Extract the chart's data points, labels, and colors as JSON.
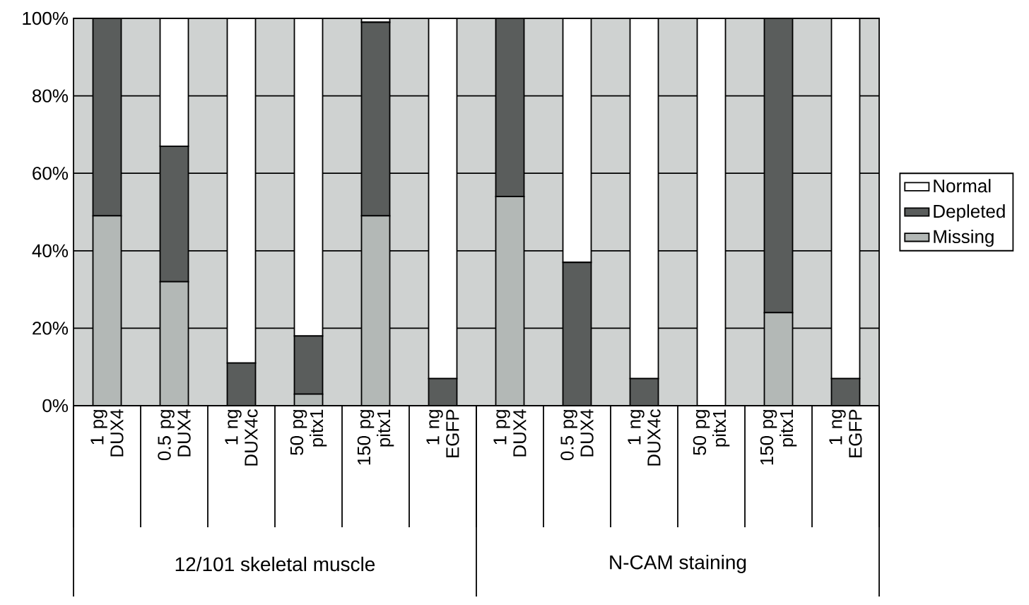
{
  "chart_data": {
    "type": "bar",
    "stacked": true,
    "categories": [
      "1 pg DUX4",
      "0.5 pg DUX4",
      "1 ng DUX4c",
      "50 pg pitx1",
      "150 pg pitx1",
      "1 ng EGFP",
      "1 pg DUX4",
      "0.5 pg DUX4",
      "1 ng DUX4c",
      "50 pg pitx1",
      "150 pg pitx1",
      "1 ng EGFP"
    ],
    "series": [
      {
        "name": "Missing",
        "color": "#b3b8b6",
        "values": [
          49,
          32,
          0,
          3,
          49,
          0,
          54,
          0,
          0,
          0,
          24,
          0
        ]
      },
      {
        "name": "Depleted",
        "color": "#5a5d5c",
        "values": [
          51,
          35,
          11,
          15,
          50,
          7,
          46,
          37,
          7,
          0,
          76,
          7
        ]
      },
      {
        "name": "Normal",
        "color": "#ffffff",
        "values": [
          0,
          33,
          89,
          82,
          1,
          93,
          0,
          63,
          93,
          100,
          0,
          93
        ]
      }
    ],
    "ylim": [
      0,
      100
    ],
    "yticks": [
      {
        "value": 0,
        "label": "0%"
      },
      {
        "value": 20,
        "label": "20%"
      },
      {
        "value": 40,
        "label": "40%"
      },
      {
        "value": 60,
        "label": "60%"
      },
      {
        "value": 80,
        "label": "80%"
      },
      {
        "value": 100,
        "label": "100%"
      }
    ],
    "grid": "y",
    "legend": "right",
    "annotations": [
      "12/101 skeletal muscle",
      "N-CAM staining"
    ]
  }
}
